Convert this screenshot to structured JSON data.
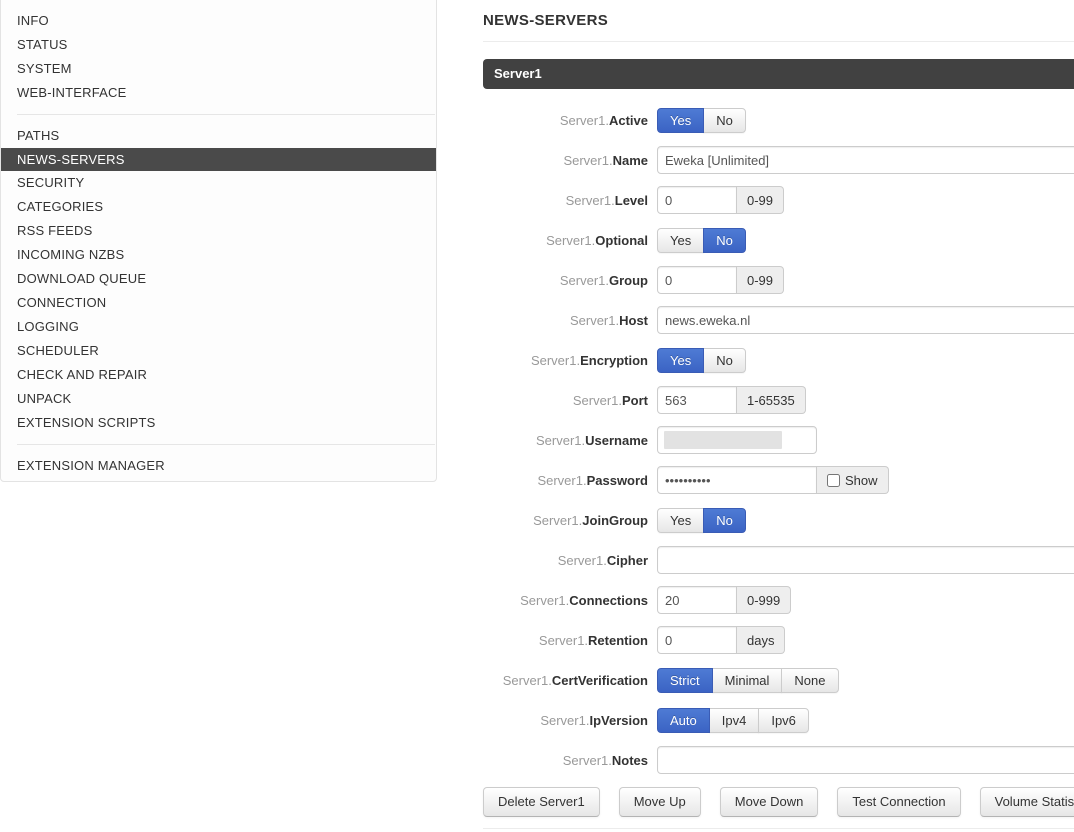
{
  "header": {
    "title": "NEWS-SERVERS"
  },
  "panel": {
    "title": "Server1"
  },
  "sidebar": {
    "selected": "NEWS-SERVERS",
    "sections": [
      {
        "items": [
          "INFO",
          "STATUS",
          "SYSTEM",
          "WEB-INTERFACE"
        ]
      },
      {
        "items": [
          "PATHS",
          "NEWS-SERVERS",
          "SECURITY",
          "CATEGORIES",
          "RSS FEEDS",
          "INCOMING NZBS",
          "DOWNLOAD QUEUE",
          "CONNECTION",
          "LOGGING",
          "SCHEDULER",
          "CHECK AND REPAIR",
          "UNPACK",
          "EXTENSION SCRIPTS"
        ]
      },
      {
        "items": [
          "EXTENSION MANAGER"
        ]
      }
    ]
  },
  "form": {
    "rows": [
      {
        "prefix": "Server1.",
        "name": "Active",
        "type": "toggle",
        "options": [
          "Yes",
          "No"
        ],
        "selected": 0
      },
      {
        "prefix": "Server1.",
        "name": "Name",
        "type": "text",
        "value": "Eweka [Unlimited]"
      },
      {
        "prefix": "Server1.",
        "name": "Level",
        "type": "number",
        "value": "0",
        "addon": "0-99"
      },
      {
        "prefix": "Server1.",
        "name": "Optional",
        "type": "toggle",
        "options": [
          "Yes",
          "No"
        ],
        "selected": 1
      },
      {
        "prefix": "Server1.",
        "name": "Group",
        "type": "number",
        "value": "0",
        "addon": "0-99"
      },
      {
        "prefix": "Server1.",
        "name": "Host",
        "type": "text",
        "value": "news.eweka.nl"
      },
      {
        "prefix": "Server1.",
        "name": "Encryption",
        "type": "toggle",
        "options": [
          "Yes",
          "No"
        ],
        "selected": 0
      },
      {
        "prefix": "Server1.",
        "name": "Port",
        "type": "number",
        "value": "563",
        "addon": "1-65535"
      },
      {
        "prefix": "Server1.",
        "name": "Username",
        "type": "redacted",
        "value": ""
      },
      {
        "prefix": "Server1.",
        "name": "Password",
        "type": "password",
        "value": "••••••••••",
        "addon_label": "Show",
        "addon_checked": false
      },
      {
        "prefix": "Server1.",
        "name": "JoinGroup",
        "type": "toggle",
        "options": [
          "Yes",
          "No"
        ],
        "selected": 1
      },
      {
        "prefix": "Server1.",
        "name": "Cipher",
        "type": "text",
        "value": ""
      },
      {
        "prefix": "Server1.",
        "name": "Connections",
        "type": "number",
        "value": "20",
        "addon": "0-999"
      },
      {
        "prefix": "Server1.",
        "name": "Retention",
        "type": "number",
        "value": "0",
        "addon": "days"
      },
      {
        "prefix": "Server1.",
        "name": "CertVerification",
        "type": "toggle",
        "options": [
          "Strict",
          "Minimal",
          "None"
        ],
        "selected": 0
      },
      {
        "prefix": "Server1.",
        "name": "IpVersion",
        "type": "toggle",
        "options": [
          "Auto",
          "Ipv4",
          "Ipv6"
        ],
        "selected": 0
      }
    ],
    "notes_row": {
      "prefix": "Server1.",
      "name": "Notes",
      "type": "text",
      "value": ""
    },
    "buttons": [
      "Delete Server1",
      "Move Up",
      "Move Down",
      "Test Connection",
      "Volume Statistics"
    ]
  },
  "colors": {
    "accent_blue_top": "#4e7bd4",
    "accent_blue_bottom": "#3b63c4",
    "sidebar_selected_bg": "#4a4a4a",
    "panel_header_bg": "#414141",
    "addon_bg": "#eeeeee",
    "input_border": "#cccccc",
    "label_prefix": "#999999",
    "text": "#333333"
  }
}
